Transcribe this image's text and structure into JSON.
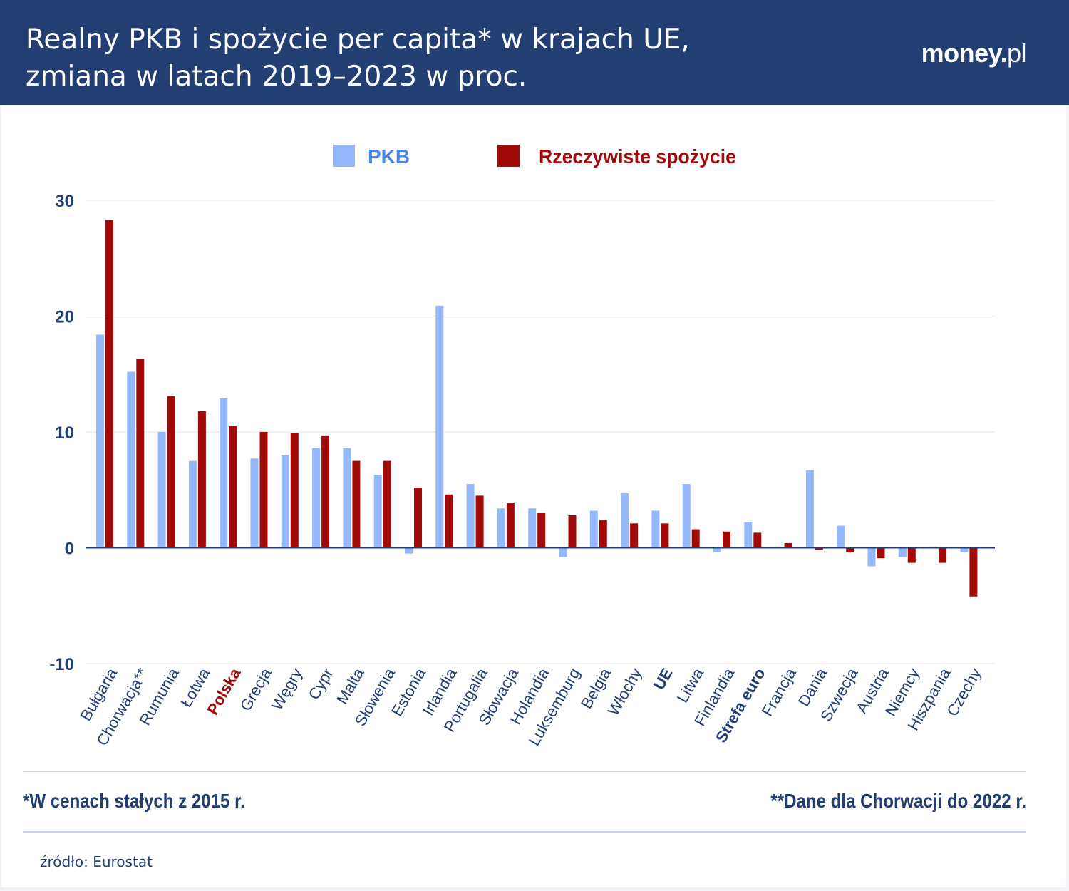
{
  "header": {
    "title_line1": "Realny PKB i spożycie per capita* w krajach UE,",
    "title_line2": "zmiana w latach 2019–2023 w proc.",
    "logo_main": "money.",
    "logo_suffix": "pl"
  },
  "notes": {
    "left": "*W cenach stałych z 2015 r.",
    "right": "**Dane dla Chorwacji do 2022 r."
  },
  "source": "źródło: Eurostat",
  "colors": {
    "header_bg": "#213f73",
    "pkb": "#94b8fb",
    "consumption": "#a20a0a",
    "axis_text": "#213f73",
    "highlight_red": "#a20a0a"
  },
  "chart_data": {
    "type": "bar",
    "title": "Realny PKB i spożycie per capita* w krajach UE, zmiana w latach 2019–2023 w proc.",
    "xlabel": "",
    "ylabel": "",
    "ylim": [
      -10,
      30
    ],
    "yticks": [
      30,
      20,
      10,
      0,
      -10
    ],
    "grid": true,
    "legend_position": "top-center",
    "categories": [
      "Bułgaria",
      "Chorwacja**",
      "Rumunia",
      "Łotwa",
      "Polska",
      "Grecja",
      "Węgry",
      "Cypr",
      "Malta",
      "Słowenia",
      "Estonia",
      "Irlandia",
      "Portugalia",
      "Słowacja",
      "Holandia",
      "Luksemburg",
      "Belgia",
      "Włochy",
      "UE",
      "Litwa",
      "Finlandia",
      "Strefa euro",
      "Francja",
      "Dania",
      "Szwecja",
      "Austria",
      "Niemcy",
      "Hiszpania",
      "Czechy"
    ],
    "category_styles": [
      "normal",
      "normal",
      "normal",
      "normal",
      "highlight-red",
      "normal",
      "normal",
      "normal",
      "normal",
      "normal",
      "normal",
      "normal",
      "normal",
      "normal",
      "normal",
      "normal",
      "normal",
      "normal",
      "bold-blue",
      "normal",
      "normal",
      "bold-blue",
      "normal",
      "normal",
      "normal",
      "normal",
      "normal",
      "normal",
      "normal"
    ],
    "series": [
      {
        "name": "PKB",
        "color": "#94b8fb",
        "values": [
          18.4,
          15.2,
          10.0,
          7.5,
          12.9,
          7.7,
          8.0,
          8.6,
          8.6,
          6.3,
          -0.5,
          20.9,
          5.5,
          3.4,
          3.4,
          -0.8,
          3.2,
          4.7,
          3.2,
          5.5,
          -0.4,
          2.2,
          0.1,
          6.7,
          1.9,
          -1.6,
          -0.8,
          0.1,
          -0.4
        ]
      },
      {
        "name": "Rzeczywiste spożycie",
        "color": "#a20a0a",
        "values": [
          28.3,
          16.3,
          13.1,
          11.8,
          10.5,
          10.0,
          9.9,
          9.7,
          7.5,
          7.5,
          5.2,
          4.6,
          4.5,
          3.9,
          3.0,
          2.8,
          2.4,
          2.1,
          2.1,
          1.6,
          1.4,
          1.3,
          0.4,
          -0.2,
          -0.4,
          -0.9,
          -1.3,
          -1.3,
          -4.2
        ]
      }
    ]
  }
}
